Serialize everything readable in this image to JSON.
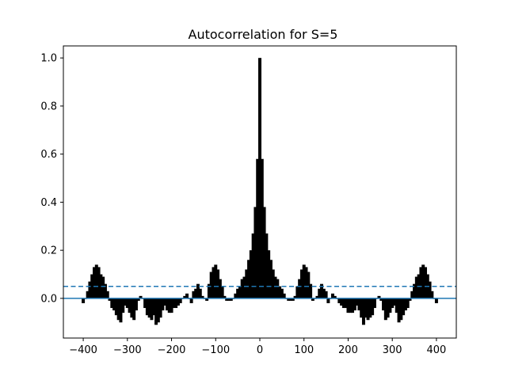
{
  "chart_data": {
    "type": "bar",
    "title": "Autocorrelation for S=5",
    "xlabel": "",
    "ylabel": "",
    "xlim": [
      -445,
      445
    ],
    "ylim": [
      -0.165,
      1.05
    ],
    "xticks": [
      -400,
      -300,
      -200,
      -100,
      0,
      100,
      200,
      300,
      400
    ],
    "xtick_labels": [
      "−400",
      "−300",
      "−200",
      "−100",
      "0",
      "100",
      "200",
      "300",
      "400"
    ],
    "yticks": [
      0.0,
      0.2,
      0.4,
      0.6,
      0.8,
      1.0
    ],
    "ytick_labels": [
      "0.0",
      "0.2",
      "0.4",
      "0.6",
      "0.8",
      "1.0"
    ],
    "grid": false,
    "bar_color": "#000000",
    "baseline": {
      "y": 0.0,
      "color": "#1f77b4",
      "style": "solid"
    },
    "threshold": {
      "y": 0.05,
      "color": "#1f77b4",
      "style": "dashed"
    },
    "lag_step": 5,
    "series": [
      {
        "lag": [
          -400,
          -395,
          -390,
          -385,
          -380,
          -375,
          -370,
          -365,
          -360,
          -355,
          -350,
          -345,
          -340,
          -335,
          -330,
          -325,
          -320,
          -315,
          -310,
          -305,
          -300,
          -295,
          -290,
          -285,
          -280,
          -275,
          -270,
          -265,
          -260,
          -255,
          -250,
          -245,
          -240,
          -235,
          -230,
          -225,
          -220,
          -215,
          -210,
          -205,
          -200,
          -195,
          -190,
          -185,
          -180,
          -175,
          -170,
          -165,
          -160,
          -155,
          -150,
          -145,
          -140,
          -135,
          -130,
          -125,
          -120,
          -115,
          -110,
          -105,
          -100,
          -95,
          -90,
          -85,
          -80,
          -75,
          -70,
          -65,
          -60,
          -55,
          -50,
          -45,
          -40,
          -35,
          -30,
          -25,
          -20,
          -15,
          -10,
          -5,
          0,
          5,
          10,
          15,
          20,
          25,
          30,
          35,
          40,
          45,
          50,
          55,
          60,
          65,
          70,
          75,
          80,
          85,
          90,
          95,
          100,
          105,
          110,
          115,
          120,
          125,
          130,
          135,
          140,
          145,
          150,
          155,
          160,
          165,
          170,
          175,
          180,
          185,
          190,
          195,
          200,
          205,
          210,
          215,
          220,
          225,
          230,
          235,
          240,
          245,
          250,
          255,
          260,
          265,
          270,
          275,
          280,
          285,
          290,
          295,
          300,
          305,
          310,
          315,
          320,
          325,
          330,
          335,
          340,
          345,
          350,
          355,
          360,
          365,
          370,
          375,
          380,
          385,
          390,
          395,
          400
        ],
        "value": [
          -0.02,
          0.0,
          0.03,
          0.07,
          0.1,
          0.13,
          0.14,
          0.13,
          0.1,
          0.09,
          0.06,
          0.03,
          -0.01,
          -0.04,
          -0.05,
          -0.07,
          -0.09,
          -0.1,
          -0.06,
          -0.03,
          -0.04,
          -0.06,
          -0.08,
          -0.09,
          -0.05,
          -0.01,
          0.01,
          0.0,
          -0.04,
          -0.07,
          -0.08,
          -0.09,
          -0.07,
          -0.11,
          -0.1,
          -0.08,
          -0.05,
          -0.03,
          -0.05,
          -0.06,
          -0.06,
          -0.04,
          -0.04,
          -0.03,
          -0.02,
          0.0,
          0.01,
          0.02,
          0.0,
          -0.02,
          0.03,
          0.04,
          0.06,
          0.04,
          0.01,
          0.0,
          -0.01,
          0.06,
          0.11,
          0.13,
          0.14,
          0.12,
          0.08,
          0.05,
          0.01,
          -0.01,
          -0.01,
          -0.01,
          0.0,
          0.02,
          0.04,
          0.05,
          0.08,
          0.09,
          0.12,
          0.16,
          0.2,
          0.27,
          0.38,
          0.58,
          1.0,
          0.58,
          0.38,
          0.27,
          0.2,
          0.16,
          0.12,
          0.09,
          0.08,
          0.05,
          0.04,
          0.02,
          0.0,
          -0.01,
          -0.01,
          -0.01,
          0.01,
          0.05,
          0.08,
          0.12,
          0.14,
          0.13,
          0.11,
          0.06,
          -0.01,
          0.0,
          0.01,
          0.04,
          0.06,
          0.04,
          0.03,
          -0.02,
          0.0,
          0.02,
          0.01,
          0.0,
          -0.02,
          -0.03,
          -0.04,
          -0.04,
          -0.06,
          -0.06,
          -0.06,
          -0.05,
          -0.03,
          -0.05,
          -0.08,
          -0.11,
          -0.08,
          -0.09,
          -0.08,
          -0.07,
          -0.04,
          0.0,
          0.01,
          -0.01,
          -0.05,
          -0.09,
          -0.08,
          -0.06,
          -0.04,
          -0.03,
          -0.06,
          -0.1,
          -0.09,
          -0.07,
          -0.05,
          -0.04,
          -0.01,
          0.03,
          0.06,
          0.09,
          0.1,
          0.13,
          0.14,
          0.13,
          0.1,
          0.07,
          0.03,
          0.0,
          -0.02
        ]
      }
    ]
  }
}
